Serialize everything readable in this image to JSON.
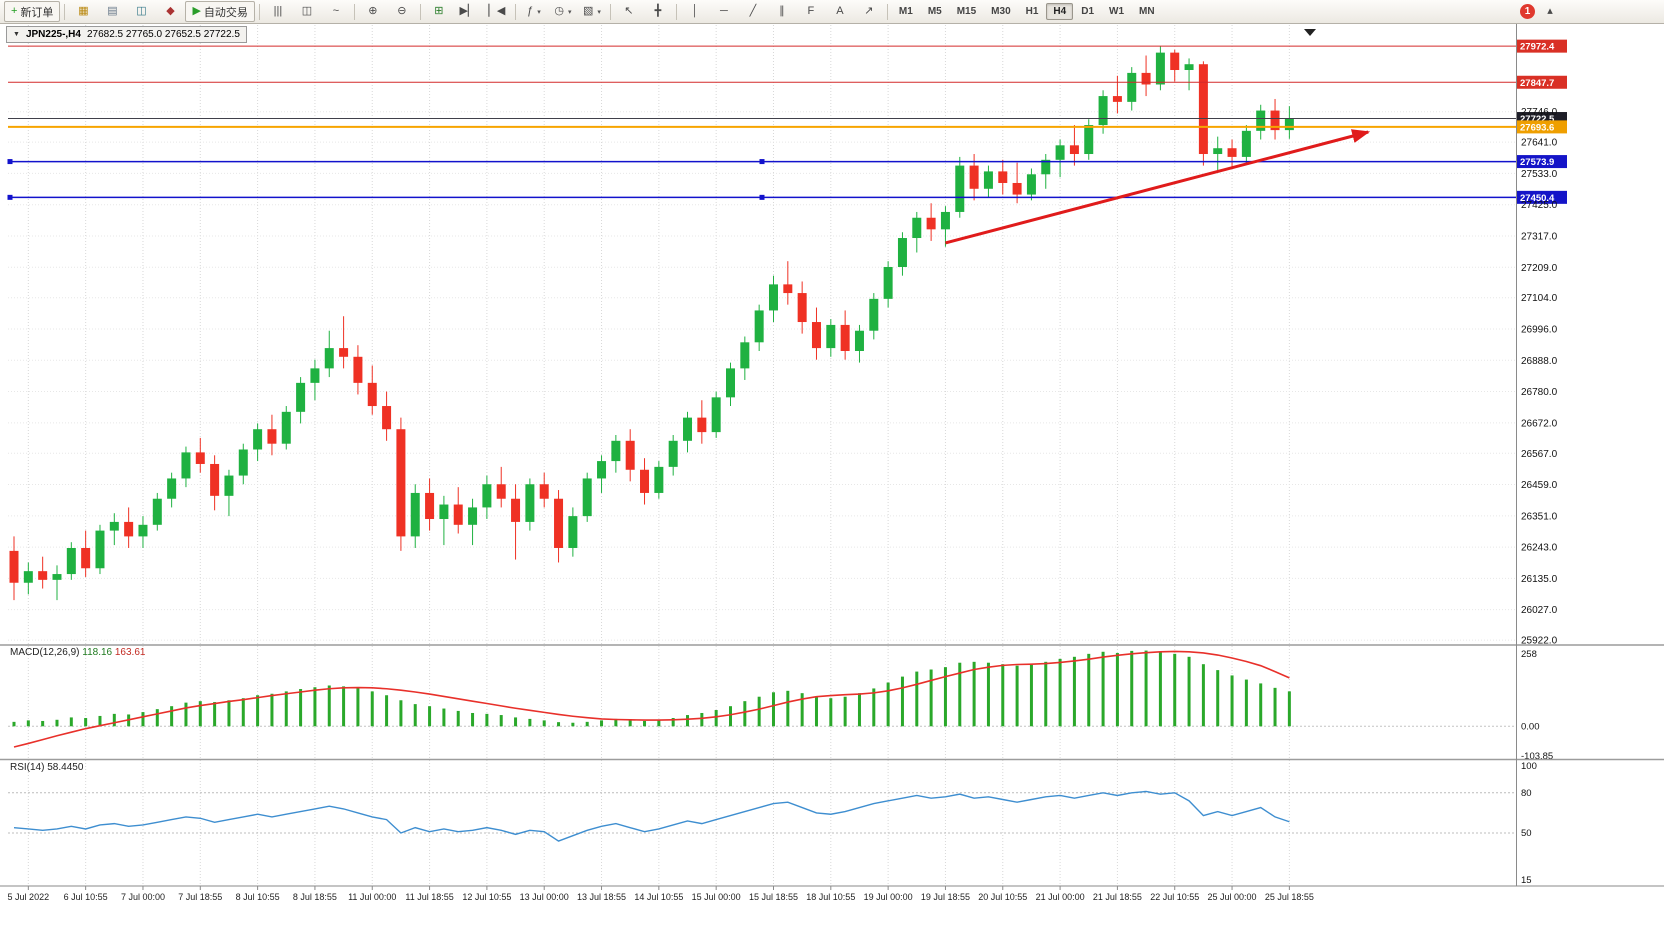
{
  "toolbar": {
    "timeframes": [
      "M1",
      "M5",
      "M15",
      "M30",
      "H1",
      "H4",
      "D1",
      "W1",
      "MN"
    ],
    "active_timeframe": "H4",
    "notification_count": "1",
    "items": [
      {
        "type": "btn",
        "name": "new-order-button",
        "icon": "new-order-icon",
        "glyph": "+",
        "color": "#1f9d1f",
        "label": "新订单"
      },
      {
        "type": "sep"
      },
      {
        "type": "btn",
        "name": "new-chart-button",
        "icon": "new-chart-icon",
        "glyph": "▦",
        "color": "#b8860b"
      },
      {
        "type": "btn",
        "name": "profiles-button",
        "icon": "profiles-icon",
        "glyph": "▤",
        "color": "#667788"
      },
      {
        "type": "btn",
        "name": "market-watch-button",
        "icon": "market-watch-icon",
        "glyph": "◫",
        "color": "#337788"
      },
      {
        "type": "btn",
        "name": "metaeditor-button",
        "icon": "metaeditor-icon",
        "glyph": "◆",
        "color": "#aa3333"
      },
      {
        "type": "btn",
        "name": "auto-trading-button",
        "icon": "auto-trading-icon",
        "glyph": "▶",
        "color": "#2a9d2a",
        "label": "自动交易"
      },
      {
        "type": "sep"
      },
      {
        "type": "btn",
        "name": "bar-chart-button",
        "icon": "bar-chart-icon",
        "glyph": "|||"
      },
      {
        "type": "btn",
        "name": "candlestick-chart-button",
        "icon": "candlestick-chart-icon",
        "glyph": "◫"
      },
      {
        "type": "btn",
        "name": "line-chart-button",
        "icon": "line-chart-icon",
        "glyph": "~"
      },
      {
        "type": "sep"
      },
      {
        "type": "btn",
        "name": "zoom-in-button",
        "icon": "zoom-in-icon",
        "glyph": "⊕"
      },
      {
        "type": "btn",
        "name": "zoom-out-button",
        "icon": "zoom-out-icon",
        "glyph": "⊖"
      },
      {
        "type": "sep"
      },
      {
        "type": "btn",
        "name": "tile-windows-button",
        "icon": "tile-windows-icon",
        "glyph": "⊞",
        "color": "#2a7d2a"
      },
      {
        "type": "btn",
        "name": "auto-scroll-button",
        "icon": "auto-scroll-icon",
        "glyph": "▶▏"
      },
      {
        "type": "btn",
        "name": "chart-shift-button",
        "icon": "chart-shift-icon",
        "glyph": "▏◀"
      },
      {
        "type": "sep"
      },
      {
        "type": "btn",
        "name": "indicators-button",
        "icon": "indicators-icon",
        "glyph": "ƒ",
        "dd": true
      },
      {
        "type": "btn",
        "name": "periods-button",
        "icon": "periods-icon",
        "glyph": "◷",
        "dd": true
      },
      {
        "type": "btn",
        "name": "templates-button",
        "icon": "templates-icon",
        "glyph": "▧",
        "dd": true
      },
      {
        "type": "sep"
      },
      {
        "type": "btn",
        "name": "cursor-button",
        "icon": "cursor-icon",
        "glyph": "↖"
      },
      {
        "type": "btn",
        "name": "crosshair-button",
        "icon": "crosshair-icon",
        "glyph": "╋"
      },
      {
        "type": "sep"
      },
      {
        "type": "btn",
        "name": "vertical-line-button",
        "icon": "vertical-line-icon",
        "glyph": "│"
      },
      {
        "type": "btn",
        "name": "horizontal-line-button",
        "icon": "horizontal-line-icon",
        "glyph": "─"
      },
      {
        "type": "btn",
        "name": "trendline-button",
        "icon": "trendline-icon",
        "glyph": "╱"
      },
      {
        "type": "btn",
        "name": "channel-button",
        "icon": "channel-icon",
        "glyph": "∥"
      },
      {
        "type": "btn",
        "name": "fibonacci-button",
        "icon": "fibonacci-icon",
        "glyph": "F"
      },
      {
        "type": "btn",
        "name": "text-button",
        "icon": "text-icon",
        "glyph": "A"
      },
      {
        "type": "btn",
        "name": "arrows-button",
        "icon": "arrows-icon",
        "glyph": "↗"
      },
      {
        "type": "sep"
      },
      {
        "type": "tf-group"
      },
      {
        "type": "spacer"
      },
      {
        "type": "badge",
        "name": "notification-badge"
      },
      {
        "type": "btn",
        "name": "toolbar-overflow-button",
        "icon": "toolbar-overflow-icon",
        "glyph": "▴"
      }
    ]
  },
  "chart": {
    "tab_menu_glyph": "▼",
    "tab_symbol": "JPN225-,H4",
    "tab_ohlc": "27682.5 27765.0 27652.5 27722.5"
  },
  "colors": {
    "bull": "#1fb141",
    "bear": "#ef3124",
    "grid_v": "#d8d8d8",
    "grid_h": "#e7e7e7",
    "macd_hist": "#2aa82a",
    "macd_signal": "#e8302a",
    "rsi_line": "#3e8ed0",
    "arrow": "#e01b1b",
    "separator": "#9c9c9c"
  },
  "chart_data": [
    {
      "type": "candlestick",
      "symbol": "JPN225-",
      "timeframe": "H4",
      "ohlc_header": {
        "open": 27682.5,
        "high": 27765.0,
        "low": 27652.5,
        "close": 27722.5
      },
      "ylim": [
        25912,
        28035
      ],
      "price_ticks": [
        27746.0,
        27641.0,
        27533.0,
        27425.0,
        27317.0,
        27209.0,
        27104.0,
        26996.0,
        26888.0,
        26780.0,
        26672.0,
        26567.0,
        26459.0,
        26351.0,
        26243.0,
        26135.0,
        26027.0,
        25922.0
      ],
      "time_labels": [
        "5 Jul 2022",
        "6 Jul 10:55",
        "7 Jul 00:00",
        "7 Jul 18:55",
        "8 Jul 10:55",
        "8 Jul 18:55",
        "11 Jul 00:00",
        "11 Jul 18:55",
        "12 Jul 10:55",
        "13 Jul 00:00",
        "13 Jul 18:55",
        "14 Jul 10:55",
        "15 Jul 00:00",
        "15 Jul 18:55",
        "18 Jul 10:55",
        "19 Jul 00:00",
        "19 Jul 18:55",
        "20 Jul 10:55",
        "21 Jul 00:00",
        "21 Jul 18:55",
        "22 Jul 10:55",
        "25 Jul 00:00",
        "25 Jul 18:55"
      ],
      "candles": [
        [
          26230,
          26280,
          26060,
          26120
        ],
        [
          26120,
          26190,
          26080,
          26160
        ],
        [
          26160,
          26210,
          26100,
          26130
        ],
        [
          26130,
          26180,
          26060,
          26150
        ],
        [
          26150,
          26260,
          26130,
          26240
        ],
        [
          26240,
          26300,
          26140,
          26170
        ],
        [
          26170,
          26320,
          26150,
          26300
        ],
        [
          26300,
          26360,
          26250,
          26330
        ],
        [
          26330,
          26380,
          26240,
          26280
        ],
        [
          26280,
          26350,
          26240,
          26320
        ],
        [
          26320,
          26430,
          26300,
          26410
        ],
        [
          26410,
          26500,
          26380,
          26480
        ],
        [
          26480,
          26590,
          26450,
          26570
        ],
        [
          26570,
          26620,
          26500,
          26530
        ],
        [
          26530,
          26560,
          26370,
          26420
        ],
        [
          26420,
          26510,
          26350,
          26490
        ],
        [
          26490,
          26600,
          26460,
          26580
        ],
        [
          26580,
          26670,
          26540,
          26650
        ],
        [
          26650,
          26700,
          26560,
          26600
        ],
        [
          26600,
          26730,
          26580,
          26710
        ],
        [
          26710,
          26830,
          26670,
          26810
        ],
        [
          26810,
          26890,
          26750,
          26860
        ],
        [
          26860,
          26990,
          26830,
          26930
        ],
        [
          26930,
          27040,
          26860,
          26900
        ],
        [
          26900,
          26940,
          26770,
          26810
        ],
        [
          26810,
          26870,
          26700,
          26730
        ],
        [
          26730,
          26780,
          26610,
          26650
        ],
        [
          26650,
          26690,
          26230,
          26280
        ],
        [
          26280,
          26460,
          26240,
          26430
        ],
        [
          26430,
          26480,
          26300,
          26340
        ],
        [
          26340,
          26420,
          26250,
          26390
        ],
        [
          26390,
          26450,
          26290,
          26320
        ],
        [
          26320,
          26410,
          26250,
          26380
        ],
        [
          26380,
          26490,
          26340,
          26460
        ],
        [
          26460,
          26520,
          26380,
          26410
        ],
        [
          26410,
          26460,
          26200,
          26330
        ],
        [
          26330,
          26480,
          26300,
          26460
        ],
        [
          26460,
          26500,
          26380,
          26410
        ],
        [
          26410,
          26440,
          26190,
          26240
        ],
        [
          26240,
          26380,
          26210,
          26350
        ],
        [
          26350,
          26500,
          26330,
          26480
        ],
        [
          26480,
          26560,
          26430,
          26540
        ],
        [
          26540,
          26630,
          26500,
          26610
        ],
        [
          26610,
          26650,
          26470,
          26510
        ],
        [
          26510,
          26550,
          26390,
          26430
        ],
        [
          26430,
          26540,
          26410,
          26520
        ],
        [
          26520,
          26630,
          26490,
          26610
        ],
        [
          26610,
          26710,
          26570,
          26690
        ],
        [
          26690,
          26750,
          26600,
          26640
        ],
        [
          26640,
          26780,
          26620,
          26760
        ],
        [
          26760,
          26880,
          26730,
          26860
        ],
        [
          26860,
          26970,
          26820,
          26950
        ],
        [
          26950,
          27080,
          26920,
          27060
        ],
        [
          27060,
          27180,
          27020,
          27150
        ],
        [
          27150,
          27230,
          27080,
          27120
        ],
        [
          27120,
          27160,
          26980,
          27020
        ],
        [
          27020,
          27070,
          26890,
          26930
        ],
        [
          26930,
          27030,
          26900,
          27010
        ],
        [
          27010,
          27060,
          26890,
          26920
        ],
        [
          26920,
          27010,
          26880,
          26990
        ],
        [
          26990,
          27120,
          26960,
          27100
        ],
        [
          27100,
          27230,
          27070,
          27210
        ],
        [
          27210,
          27330,
          27180,
          27310
        ],
        [
          27310,
          27400,
          27260,
          27380
        ],
        [
          27380,
          27430,
          27300,
          27340
        ],
        [
          27340,
          27420,
          27280,
          27400
        ],
        [
          27400,
          27590,
          27380,
          27560
        ],
        [
          27560,
          27600,
          27440,
          27480
        ],
        [
          27480,
          27560,
          27450,
          27540
        ],
        [
          27540,
          27580,
          27460,
          27500
        ],
        [
          27500,
          27570,
          27430,
          27460
        ],
        [
          27460,
          27550,
          27440,
          27530
        ],
        [
          27530,
          27600,
          27480,
          27580
        ],
        [
          27580,
          27650,
          27520,
          27630
        ],
        [
          27630,
          27700,
          27560,
          27600
        ],
        [
          27600,
          27720,
          27580,
          27700
        ],
        [
          27700,
          27820,
          27670,
          27800
        ],
        [
          27800,
          27870,
          27740,
          27780
        ],
        [
          27780,
          27900,
          27750,
          27880
        ],
        [
          27880,
          27940,
          27800,
          27840
        ],
        [
          27840,
          27972,
          27820,
          27950
        ],
        [
          27950,
          27960,
          27850,
          27890
        ],
        [
          27890,
          27930,
          27820,
          27910
        ],
        [
          27910,
          27920,
          27560,
          27600
        ],
        [
          27600,
          27660,
          27540,
          27620
        ],
        [
          27620,
          27650,
          27550,
          27590
        ],
        [
          27590,
          27700,
          27570,
          27680
        ],
        [
          27680,
          27770,
          27650,
          27750
        ],
        [
          27750,
          27790,
          27650,
          27682.5
        ],
        [
          27682.5,
          27765,
          27652.5,
          27722.5
        ]
      ],
      "hlines": [
        {
          "price": 27972.4,
          "color": "#d42a2a",
          "badge": "#d93025",
          "width": 1
        },
        {
          "price": 27847.7,
          "color": "#d42a2a",
          "badge": "#d93025",
          "width": 1
        },
        {
          "price": 27722.5,
          "color": "#40404a",
          "badge": "#1e1e28",
          "width": 1,
          "role": "last-price"
        },
        {
          "price": 27693.6,
          "color": "#f7a400",
          "badge": "#ef9f00",
          "width": 2
        },
        {
          "price": 27573.9,
          "color": "#1212cc",
          "badge": "#1414c8",
          "width": 1.5,
          "selected": true
        },
        {
          "price": 27450.4,
          "color": "#1212cc",
          "badge": "#1414c8",
          "width": 1.5,
          "selected": true
        }
      ],
      "trend_arrow": {
        "x1_bar": 65,
        "y1_price": 27293,
        "x2_bar": 94.5,
        "y2_price": 27676
      }
    },
    {
      "type": "bar",
      "name": "MACD(12,26,9)",
      "value_main": "118.16",
      "value_signal": "163.61",
      "ylim": [
        -103.85,
        258
      ],
      "scale_ticks": [
        {
          "v": 258,
          "label": "258"
        },
        {
          "v": 0,
          "label": "0.00"
        },
        {
          "v": -103.85,
          "label": "-103.85"
        }
      ],
      "histogram": [
        15,
        20,
        18,
        22,
        30,
        28,
        35,
        42,
        40,
        48,
        58,
        68,
        80,
        85,
        82,
        88,
        95,
        105,
        110,
        118,
        126,
        132,
        138,
        135,
        128,
        118,
        105,
        88,
        75,
        68,
        60,
        52,
        45,
        42,
        38,
        30,
        25,
        20,
        14,
        12,
        15,
        20,
        25,
        24,
        18,
        20,
        28,
        38,
        45,
        55,
        68,
        85,
        100,
        115,
        120,
        112,
        100,
        95,
        100,
        112,
        128,
        148,
        168,
        185,
        192,
        200,
        215,
        218,
        215,
        210,
        205,
        208,
        218,
        228,
        235,
        245,
        252,
        248,
        255,
        256,
        252,
        245,
        235,
        210,
        190,
        172,
        158,
        145,
        130,
        118.16
      ],
      "signal": [
        -70,
        -58,
        -45,
        -32,
        -20,
        -8,
        2,
        12,
        22,
        32,
        42,
        52,
        62,
        70,
        77,
        84,
        90,
        97,
        104,
        110,
        116,
        122,
        127,
        130,
        131,
        130,
        127,
        122,
        116,
        109,
        101,
        93,
        85,
        77,
        69,
        61,
        54,
        47,
        40,
        34,
        29,
        25,
        23,
        22,
        21,
        21,
        22,
        24,
        27,
        32,
        39,
        48,
        58,
        70,
        82,
        92,
        100,
        104,
        107,
        109,
        113,
        120,
        130,
        142,
        155,
        168,
        180,
        192,
        200,
        206,
        209,
        210,
        212,
        216,
        221,
        227,
        234,
        240,
        245,
        249,
        252,
        253,
        252,
        248,
        241,
        231,
        219,
        205,
        185,
        163.61
      ]
    },
    {
      "type": "line",
      "name": "RSI(14)",
      "value": "58.4450",
      "ylim": [
        0,
        100
      ],
      "levels": [
        80,
        50
      ],
      "scale_ticks": [
        {
          "v": 100,
          "label": "100"
        },
        {
          "v": 80,
          "label": "80"
        },
        {
          "v": 50,
          "label": "50"
        },
        {
          "v": 15,
          "label": "15"
        }
      ],
      "values": [
        54,
        53,
        52,
        53,
        55,
        53,
        56,
        57,
        55,
        56,
        58,
        60,
        62,
        61,
        58,
        60,
        62,
        64,
        62,
        64,
        66,
        68,
        70,
        68,
        65,
        62,
        60,
        50,
        54,
        51,
        53,
        51,
        52,
        54,
        52,
        49,
        52,
        51,
        44,
        48,
        52,
        55,
        57,
        54,
        51,
        53,
        56,
        59,
        57,
        60,
        63,
        66,
        69,
        72,
        73,
        69,
        65,
        64,
        66,
        69,
        72,
        74,
        76,
        78,
        76,
        77,
        79,
        76,
        77,
        75,
        73,
        75,
        77,
        78,
        76,
        78,
        80,
        78,
        80,
        81,
        79,
        80,
        74,
        63,
        66,
        63,
        66,
        69,
        62,
        58.4
      ]
    }
  ]
}
